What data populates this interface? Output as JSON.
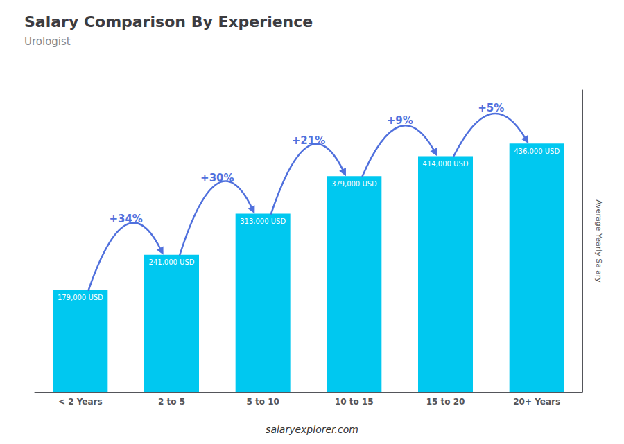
{
  "chart_data": {
    "type": "bar",
    "title": "Salary Comparison By Experience",
    "subtitle": "Urologist",
    "ylabel": "Average Yearly Salary",
    "categories": [
      "< 2 Years",
      "2 to 5",
      "5 to 10",
      "10 to 15",
      "15 to 20",
      "20+ Years"
    ],
    "values": [
      179000,
      241000,
      313000,
      379000,
      414000,
      436000
    ],
    "value_labels": [
      "179,000 USD",
      "241,000 USD",
      "313,000 USD",
      "379,000 USD",
      "414,000 USD",
      "436,000 USD"
    ],
    "data_labels": true,
    "annotations": [
      "+34%",
      "+30%",
      "+21%",
      "+9%",
      "+5%"
    ],
    "footer": "salaryexplorer.com",
    "color": "#00c8f0",
    "ylim": [
      0,
      530000
    ],
    "grid": false,
    "tick_labels": "x"
  }
}
